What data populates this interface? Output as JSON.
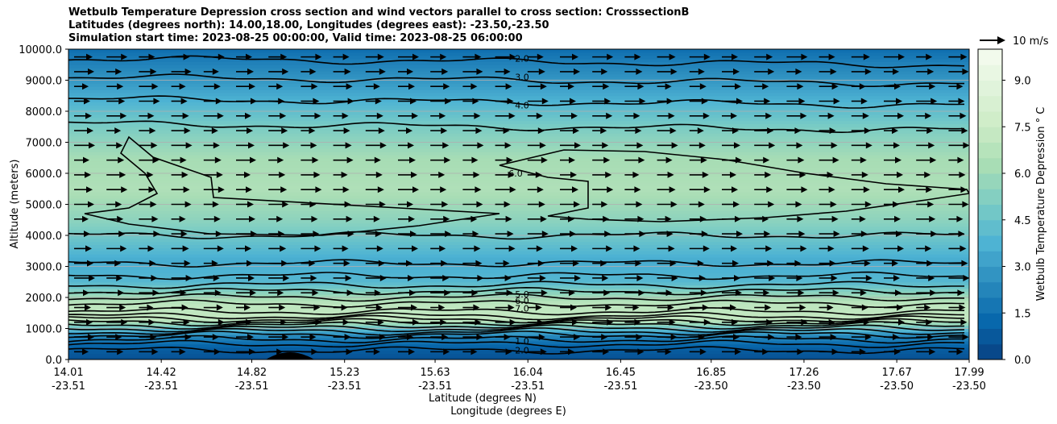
{
  "chart_data": {
    "type": "contour",
    "title_lines": [
      "Wetbulb Temperature Depression cross section and wind vectors parallel to cross section: CrosssectionB",
      "Latitudes (degrees north): 14.00,18.00, Longitudes (degrees east): -23.50,-23.50",
      "Simulation start time: 2023-08-25 00:00:00, Valid time: 2023-08-25 06:00:00"
    ],
    "ylabel": "Altitude (meters)",
    "xlabel_lat": "Latitude (degrees N)",
    "xlabel_lon": "Longitude (degrees E)",
    "ylim": [
      0,
      10000
    ],
    "y_ticks": [
      "0.0",
      "1000.0",
      "2000.0",
      "3000.0",
      "4000.0",
      "5000.0",
      "6000.0",
      "7000.0",
      "8000.0",
      "9000.0",
      "10000.0"
    ],
    "x_ticks": [
      {
        "lat": "14.01",
        "lon": "-23.51"
      },
      {
        "lat": "14.42",
        "lon": "-23.51"
      },
      {
        "lat": "14.82",
        "lon": "-23.51"
      },
      {
        "lat": "15.23",
        "lon": "-23.51"
      },
      {
        "lat": "15.63",
        "lon": "-23.51"
      },
      {
        "lat": "16.04",
        "lon": "-23.51"
      },
      {
        "lat": "16.45",
        "lon": "-23.51"
      },
      {
        "lat": "16.85",
        "lon": "-23.50"
      },
      {
        "lat": "17.26",
        "lon": "-23.50"
      },
      {
        "lat": "17.67",
        "lon": "-23.50"
      },
      {
        "lat": "17.99",
        "lon": "-23.50"
      }
    ],
    "colorbar": {
      "label": "Wetbulb Temperature Depression ° C",
      "range": [
        0,
        10
      ],
      "ticks": [
        "0.0",
        "1.5",
        "3.0",
        "4.5",
        "6.0",
        "7.5",
        "9.0"
      ],
      "colormap": "GnBu_r"
    },
    "quiver_key": {
      "label": "10 m/s"
    },
    "contour_labels": [
      {
        "text": "2.0",
        "alt": 9700
      },
      {
        "text": "3.0",
        "alt": 9100
      },
      {
        "text": "4.0",
        "alt": 8200
      },
      {
        "text": "6.0",
        "alt": 6000
      },
      {
        "text": "5.0",
        "alt": 2100
      },
      {
        "text": "6.0",
        "alt": 1900
      },
      {
        "text": "7.0",
        "alt": 1650
      },
      {
        "text": "1.0",
        "alt": 600
      },
      {
        "text": "2.0",
        "alt": 300
      }
    ],
    "depression_profile": [
      {
        "alt": 0,
        "value": 0.5
      },
      {
        "alt": 400,
        "value": 1.0
      },
      {
        "alt": 800,
        "value": 2.5
      },
      {
        "alt": 1300,
        "value": 7.2
      },
      {
        "alt": 1800,
        "value": 7.0
      },
      {
        "alt": 2500,
        "value": 4.0
      },
      {
        "alt": 3200,
        "value": 3.5
      },
      {
        "alt": 4500,
        "value": 5.5
      },
      {
        "alt": 5500,
        "value": 6.5
      },
      {
        "alt": 6500,
        "value": 6.2
      },
      {
        "alt": 7500,
        "value": 5.0
      },
      {
        "alt": 8500,
        "value": 3.5
      },
      {
        "alt": 9500,
        "value": 2.2
      },
      {
        "alt": 10000,
        "value": 1.5
      }
    ]
  }
}
